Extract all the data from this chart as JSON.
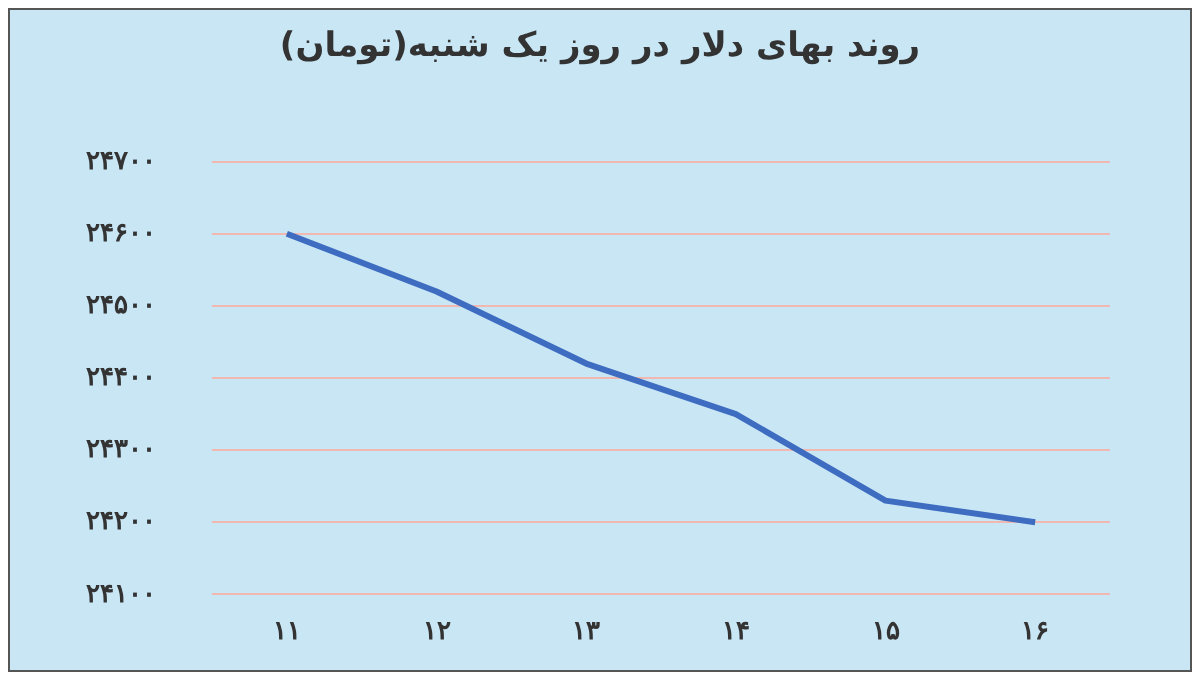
{
  "chart_data": {
    "type": "line",
    "title": "روند بهای دلار در روز یک شنبه(تومان)",
    "categories": [
      "۱۱",
      "۱۲",
      "۱۳",
      "۱۴",
      "۱۵",
      "۱۶"
    ],
    "series": [
      {
        "color": "#3d6cc0",
        "values": [
          24600,
          24520,
          24420,
          24350,
          24230,
          24200
        ]
      }
    ],
    "ylim": [
      24100,
      24700
    ],
    "yticks": [
      {
        "value": 24100,
        "label": "۲۴۱۰۰"
      },
      {
        "value": 24200,
        "label": "۲۴۲۰۰"
      },
      {
        "value": 24300,
        "label": "۲۴۳۰۰"
      },
      {
        "value": 24400,
        "label": "۲۴۴۰۰"
      },
      {
        "value": 24500,
        "label": "۲۴۵۰۰"
      },
      {
        "value": 24600,
        "label": "۲۴۶۰۰"
      },
      {
        "value": 24700,
        "label": "۲۴۷۰۰"
      }
    ],
    "grid": "y",
    "legend": false,
    "marker": "none",
    "line_style": "solid"
  }
}
